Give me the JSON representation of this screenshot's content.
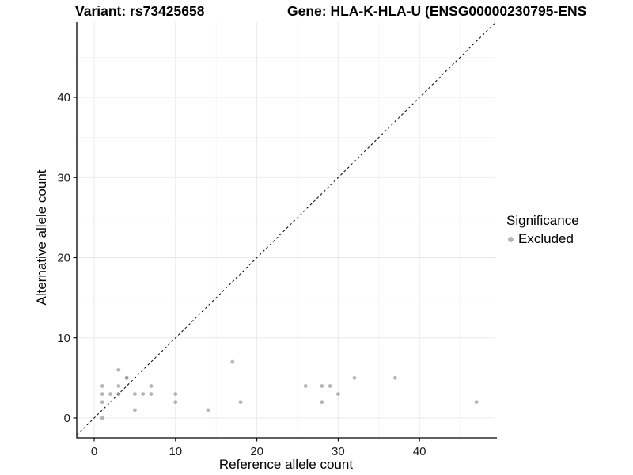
{
  "chart_data": {
    "type": "scatter",
    "title": [
      "Variant: rs73425658",
      "Gene: HLA-K-HLA-U (ENSG00000230795-ENS"
    ],
    "xlabel": "Reference allele count",
    "ylabel": "Alternative allele count",
    "xlim": [
      -2.14,
      49.32
    ],
    "ylim": [
      -2.47,
      49.38
    ],
    "xticks": [
      0,
      10,
      20,
      30,
      40
    ],
    "yticks": [
      0,
      10,
      20,
      30,
      40
    ],
    "xticks_minor": [
      5,
      15,
      25,
      35,
      45
    ],
    "yticks_minor": [
      5,
      15,
      25,
      35,
      45
    ],
    "grid": "major+minor",
    "legend_position": "right",
    "identity_line": {
      "style": "dashed",
      "color": "#000000",
      "slope": 1,
      "intercept": 0
    },
    "series": [
      {
        "name": "Excluded",
        "color": "#8f8f8f",
        "opacity": 0.65,
        "marker_radius": 2.4,
        "points": [
          [
            1,
            0
          ],
          [
            1,
            2
          ],
          [
            1,
            3
          ],
          [
            1,
            4
          ],
          [
            2,
            3
          ],
          [
            3,
            3
          ],
          [
            3,
            3
          ],
          [
            3,
            4
          ],
          [
            3,
            6
          ],
          [
            4,
            5
          ],
          [
            4,
            5
          ],
          [
            5,
            1
          ],
          [
            5,
            3
          ],
          [
            6,
            3
          ],
          [
            7,
            3
          ],
          [
            7,
            4
          ],
          [
            10,
            2
          ],
          [
            10,
            3
          ],
          [
            14,
            1
          ],
          [
            17,
            7
          ],
          [
            18,
            2
          ],
          [
            26,
            4
          ],
          [
            28,
            2
          ],
          [
            28,
            4
          ],
          [
            29,
            4
          ],
          [
            30,
            3
          ],
          [
            32,
            5
          ],
          [
            37,
            5
          ],
          [
            47,
            2
          ]
        ]
      }
    ],
    "colors": {
      "grid_major": "#e9e9e9",
      "grid_minor": "#f4f4f4",
      "axis": "#000000",
      "tick_text": "#1a1a1a"
    }
  },
  "legend": {
    "title": "Significance",
    "items": [
      {
        "label": "Excluded",
        "color": "#b6b6b6"
      }
    ]
  }
}
